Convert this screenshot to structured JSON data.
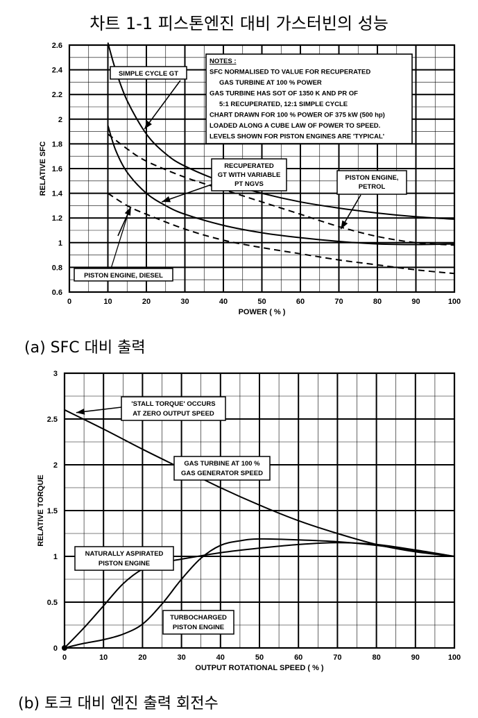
{
  "page": {
    "title": "차트 1-1 피스톤엔진 대비 가스터빈의 성능",
    "caption_a": "(a) SFC 대비 출력",
    "caption_b": "(b) 토크 대비 엔진 출력 회전수"
  },
  "chart_data": [
    {
      "type": "line",
      "xlabel": "POWER ( % )",
      "ylabel": "RELATIVE SFC",
      "xlim": [
        0,
        100
      ],
      "ylim": [
        0.6,
        2.6
      ],
      "x_ticks": [
        "0",
        "10",
        "20",
        "30",
        "40",
        "50",
        "60",
        "70",
        "80",
        "90",
        "100"
      ],
      "y_ticks": [
        "0.6",
        "0.8",
        "1",
        "1.2",
        "1.4",
        "1.6",
        "1.8",
        "2",
        "2.2",
        "2.4",
        "2.6"
      ],
      "grid": true,
      "series": [
        {
          "name": "SIMPLE CYCLE GT",
          "style": "solid",
          "x": [
            10,
            12,
            15,
            20,
            25,
            30,
            40,
            50,
            60,
            70,
            80,
            90,
            100
          ],
          "y": [
            2.62,
            2.4,
            2.15,
            1.88,
            1.72,
            1.62,
            1.49,
            1.4,
            1.33,
            1.28,
            1.24,
            1.21,
            1.19
          ]
        },
        {
          "name": "RECUPERATED GT WITH VARIABLE PT NGVS",
          "style": "solid",
          "x": [
            10,
            12,
            15,
            20,
            25,
            30,
            40,
            50,
            60,
            70,
            80,
            90,
            100
          ],
          "y": [
            1.95,
            1.75,
            1.57,
            1.4,
            1.3,
            1.23,
            1.14,
            1.08,
            1.04,
            1.01,
            0.99,
            0.985,
            0.99
          ]
        },
        {
          "name": "PISTON ENGINE, PETROL",
          "style": "dashed",
          "x": [
            10,
            15,
            20,
            30,
            40,
            50,
            60,
            70,
            80,
            90,
            100
          ],
          "y": [
            1.88,
            1.76,
            1.66,
            1.53,
            1.43,
            1.33,
            1.23,
            1.13,
            1.05,
            1.0,
            0.98
          ]
        },
        {
          "name": "PISTON ENGINE, DIESEL",
          "style": "dashed",
          "x": [
            10,
            15,
            20,
            30,
            40,
            50,
            60,
            70,
            80,
            90,
            100
          ],
          "y": [
            1.4,
            1.3,
            1.23,
            1.11,
            1.02,
            0.96,
            0.91,
            0.86,
            0.82,
            0.78,
            0.75
          ]
        }
      ],
      "notes": [
        "NOTES :",
        "SFC NORMALISED TO VALUE FOR RECUPERATED",
        "GAS TURBINE AT 100 % POWER",
        "GAS TURBINE HAS SOT OF 1350 K AND PR OF",
        "5:1 RECUPERATED, 12:1 SIMPLE CYCLE",
        "CHART DRAWN FOR 100 % POWER OF 375 kW (500 hp)",
        "LOADED ALONG A CUBE LAW OF POWER TO SPEED.",
        "LEVELS SHOWN FOR PISTON ENGINES ARE 'TYPICAL'"
      ],
      "callouts": {
        "simple": [
          "SIMPLE CYCLE GT"
        ],
        "recup": [
          "RECUPERATED",
          "GT WITH VARIABLE",
          "PT NGVS"
        ],
        "petrol": [
          "PISTON ENGINE,",
          "PETROL"
        ],
        "diesel": [
          "PISTON ENGINE, DIESEL"
        ]
      }
    },
    {
      "type": "line",
      "xlabel": "OUTPUT ROTATIONAL SPEED ( % )",
      "ylabel": "RELATIVE TORQUE",
      "xlim": [
        0,
        100
      ],
      "ylim": [
        0,
        3
      ],
      "x_ticks": [
        "0",
        "10",
        "20",
        "30",
        "40",
        "50",
        "60",
        "70",
        "80",
        "90",
        "100"
      ],
      "y_ticks": [
        "0",
        "0.5",
        "1",
        "1.5",
        "2",
        "2.5",
        "3"
      ],
      "grid": true,
      "series": [
        {
          "name": "GAS TURBINE AT 100 % GAS GENERATOR SPEED",
          "style": "solid",
          "x": [
            0,
            10,
            20,
            30,
            40,
            50,
            60,
            70,
            80,
            90,
            100
          ],
          "y": [
            2.6,
            2.39,
            2.17,
            1.96,
            1.75,
            1.56,
            1.39,
            1.25,
            1.13,
            1.05,
            1.0
          ]
        },
        {
          "name": "NATURALLY ASPIRATED PISTON ENGINE",
          "style": "solid",
          "x": [
            0,
            5,
            10,
            15,
            20,
            25,
            30,
            40,
            50,
            60,
            70,
            80,
            90,
            100
          ],
          "y": [
            0,
            0.22,
            0.46,
            0.7,
            0.86,
            0.93,
            0.97,
            1.04,
            1.09,
            1.13,
            1.15,
            1.13,
            1.07,
            1.0
          ]
        },
        {
          "name": "TURBOCHARGED PISTON ENGINE",
          "style": "solid",
          "x": [
            0,
            5,
            10,
            15,
            20,
            25,
            30,
            35,
            40,
            45,
            50,
            60,
            70,
            80,
            90,
            100
          ],
          "y": [
            0,
            0.05,
            0.09,
            0.15,
            0.26,
            0.48,
            0.75,
            0.98,
            1.12,
            1.17,
            1.19,
            1.18,
            1.16,
            1.12,
            1.06,
            1.0
          ]
        }
      ],
      "callouts": {
        "stall": [
          "'STALL TORQUE' OCCURS",
          "AT ZERO OUTPUT SPEED"
        ],
        "gt": [
          "GAS TURBINE AT 100 %",
          "GAS GENERATOR SPEED"
        ],
        "na": [
          "NATURALLY ASPIRATED",
          "PISTON ENGINE"
        ],
        "tc": [
          "TURBOCHARGED",
          "PISTON ENGINE"
        ]
      }
    }
  ]
}
